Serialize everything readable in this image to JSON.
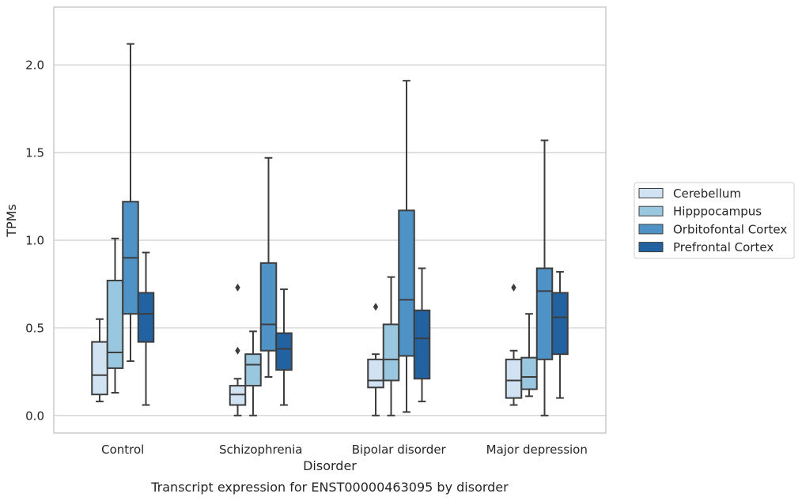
{
  "chart_data": {
    "type": "box",
    "title": "Transcript expression for ENST00000463095 by disorder",
    "xlabel": "Disorder",
    "ylabel": "TPMs",
    "categories": [
      "Control",
      "Schizophrenia",
      "Bipolar disorder",
      "Major depression"
    ],
    "ylim": [
      -0.1,
      2.33
    ],
    "yticks": [
      0.0,
      0.5,
      1.0,
      1.5,
      2.0
    ],
    "ytick_labels": [
      "0.0",
      "0.5",
      "1.0",
      "1.5",
      "2.0"
    ],
    "grid": "horizontal",
    "legend_position": "right",
    "series": [
      {
        "name": "Cerebellum",
        "color": "#d1e2f2",
        "boxes": [
          {
            "whislo": 0.08,
            "q1": 0.12,
            "med": 0.23,
            "q3": 0.42,
            "whishi": 0.55,
            "fliers": []
          },
          {
            "whislo": 0.0,
            "q1": 0.06,
            "med": 0.12,
            "q3": 0.17,
            "whishi": 0.21,
            "fliers": [
              0.73,
              0.37
            ]
          },
          {
            "whislo": 0.0,
            "q1": 0.16,
            "med": 0.2,
            "q3": 0.32,
            "whishi": 0.35,
            "fliers": [
              0.62
            ]
          },
          {
            "whislo": 0.06,
            "q1": 0.1,
            "med": 0.2,
            "q3": 0.32,
            "whishi": 0.37,
            "fliers": [
              0.73
            ]
          }
        ]
      },
      {
        "name": "Hipppocampus",
        "color": "#9ac7e0",
        "boxes": [
          {
            "whislo": 0.13,
            "q1": 0.27,
            "med": 0.36,
            "q3": 0.77,
            "whishi": 1.01,
            "fliers": []
          },
          {
            "whislo": 0.0,
            "q1": 0.17,
            "med": 0.29,
            "q3": 0.35,
            "whishi": 0.48,
            "fliers": []
          },
          {
            "whislo": 0.0,
            "q1": 0.2,
            "med": 0.32,
            "q3": 0.52,
            "whishi": 0.79,
            "fliers": []
          },
          {
            "whislo": 0.11,
            "q1": 0.15,
            "med": 0.22,
            "q3": 0.33,
            "whishi": 0.58,
            "fliers": []
          }
        ]
      },
      {
        "name": "Orbitofontal Cortex",
        "color": "#4f93c6",
        "boxes": [
          {
            "whislo": 0.31,
            "q1": 0.58,
            "med": 0.9,
            "q3": 1.22,
            "whishi": 2.12,
            "fliers": []
          },
          {
            "whislo": 0.22,
            "q1": 0.37,
            "med": 0.52,
            "q3": 0.87,
            "whishi": 1.47,
            "fliers": []
          },
          {
            "whislo": 0.02,
            "q1": 0.34,
            "med": 0.66,
            "q3": 1.17,
            "whishi": 1.91,
            "fliers": []
          },
          {
            "whislo": 0.0,
            "q1": 0.32,
            "med": 0.71,
            "q3": 0.84,
            "whishi": 1.57,
            "fliers": []
          }
        ]
      },
      {
        "name": "Prefrontal Cortex",
        "color": "#2362a1",
        "boxes": [
          {
            "whislo": 0.06,
            "q1": 0.42,
            "med": 0.58,
            "q3": 0.7,
            "whishi": 0.93,
            "fliers": []
          },
          {
            "whislo": 0.06,
            "q1": 0.26,
            "med": 0.38,
            "q3": 0.47,
            "whishi": 0.72,
            "fliers": []
          },
          {
            "whislo": 0.08,
            "q1": 0.21,
            "med": 0.44,
            "q3": 0.6,
            "whishi": 0.84,
            "fliers": []
          },
          {
            "whislo": 0.1,
            "q1": 0.35,
            "med": 0.56,
            "q3": 0.7,
            "whishi": 0.82,
            "fliers": []
          }
        ]
      }
    ]
  }
}
